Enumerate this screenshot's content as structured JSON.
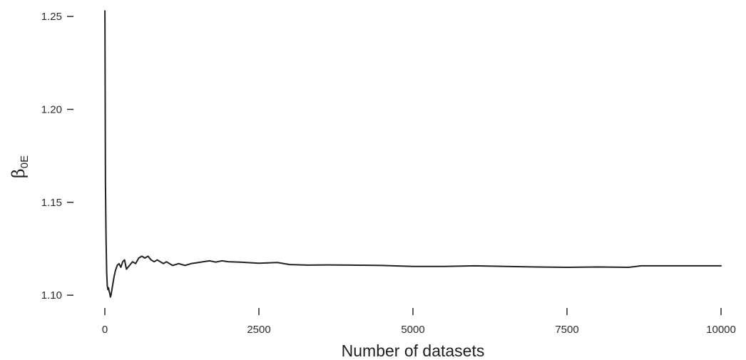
{
  "chart_data": {
    "type": "line",
    "title": "",
    "xlabel": "Number of datasets",
    "ylabel": {
      "symbol": "β",
      "subscript": "0E"
    },
    "xlim": [
      0,
      10000
    ],
    "ylim": [
      1.0985,
      1.2535
    ],
    "x_ticks": [
      0,
      2500,
      5000,
      7500,
      10000
    ],
    "x_tick_labels": [
      "0",
      "2500",
      "5000",
      "7500",
      "10000"
    ],
    "y_ticks": [
      1.1,
      1.15,
      1.2,
      1.25
    ],
    "y_tick_labels": [
      "1.10",
      "1.15",
      "1.20",
      "1.25"
    ],
    "grid": false,
    "legend": "none",
    "line_color": "#222222",
    "series": [
      {
        "x": [
          1,
          10,
          20,
          30,
          40,
          50,
          60,
          70,
          80,
          90,
          100,
          110,
          120,
          130,
          150,
          170,
          200,
          230,
          260,
          290,
          320,
          350,
          400,
          450,
          500,
          550,
          600,
          650,
          700,
          750,
          800,
          850,
          900,
          950,
          1000,
          1100,
          1200,
          1300,
          1400,
          1500,
          1600,
          1700,
          1800,
          1900,
          2000,
          2200,
          2500,
          2800,
          3000,
          3300,
          3600,
          4000,
          4500,
          5000,
          5500,
          6000,
          6500,
          7000,
          7500,
          8000,
          8500,
          8700,
          9000,
          9500,
          10000
        ],
        "y": [
          1.253,
          1.16,
          1.13,
          1.112,
          1.105,
          1.103,
          1.104,
          1.102,
          1.101,
          1.099,
          1.1,
          1.102,
          1.104,
          1.106,
          1.11,
          1.113,
          1.116,
          1.117,
          1.115,
          1.118,
          1.119,
          1.114,
          1.116,
          1.118,
          1.117,
          1.12,
          1.121,
          1.12,
          1.121,
          1.119,
          1.118,
          1.119,
          1.118,
          1.117,
          1.118,
          1.116,
          1.117,
          1.116,
          1.117,
          1.1175,
          1.118,
          1.1185,
          1.1178,
          1.1185,
          1.118,
          1.1178,
          1.1172,
          1.1176,
          1.1165,
          1.1162,
          1.1163,
          1.1162,
          1.116,
          1.1155,
          1.1155,
          1.1158,
          1.1155,
          1.1152,
          1.115,
          1.1152,
          1.115,
          1.1158,
          1.1158,
          1.1158,
          1.1158
        ]
      }
    ]
  }
}
